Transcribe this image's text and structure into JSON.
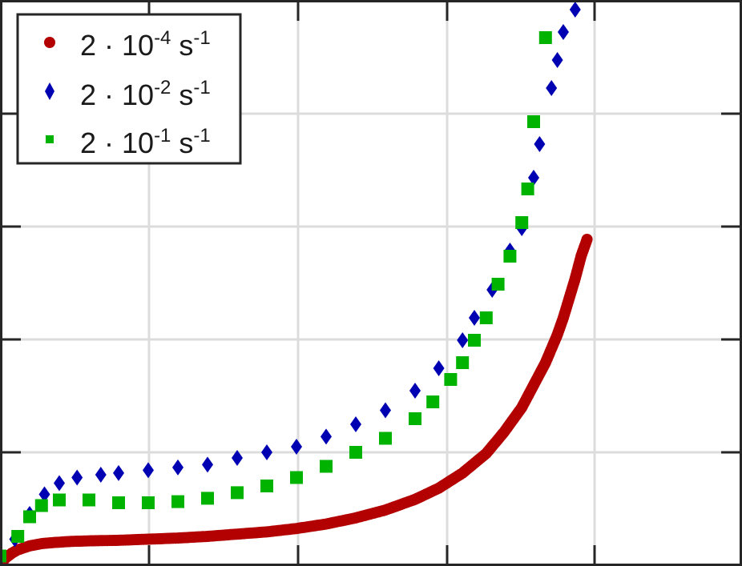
{
  "chart_data": {
    "type": "scatter",
    "title": "",
    "xlabel": "",
    "ylabel": "",
    "grid": true,
    "legend_position": "top-left",
    "xlim": [
      0,
      1
    ],
    "ylim": [
      0,
      1
    ],
    "series": [
      {
        "name": "2 · 10-4 s-1",
        "legend": {
          "base": "2 · 10",
          "exp": "-4",
          "unit": " s",
          "unit_exp": "-1"
        },
        "marker": "circle",
        "color": "#b30000",
        "style": "dense",
        "x": [
          0.0,
          0.01,
          0.02,
          0.03,
          0.05,
          0.07,
          0.09,
          0.12,
          0.15,
          0.2,
          0.25,
          0.3,
          0.35,
          0.4,
          0.45,
          0.5,
          0.55,
          0.6,
          0.65,
          0.7,
          0.74,
          0.78,
          0.82,
          0.85,
          0.88,
          0.9,
          0.92,
          0.94,
          0.95,
          0.96,
          0.97,
          0.98,
          0.99
        ],
        "y": [
          0.0,
          0.012,
          0.02,
          0.026,
          0.033,
          0.037,
          0.039,
          0.041,
          0.042,
          0.043,
          0.045,
          0.047,
          0.05,
          0.054,
          0.058,
          0.064,
          0.072,
          0.083,
          0.097,
          0.116,
          0.136,
          0.163,
          0.198,
          0.236,
          0.28,
          0.32,
          0.36,
          0.41,
          0.44,
          0.475,
          0.51,
          0.55,
          0.58
        ]
      },
      {
        "name": "2 · 10-2 s-1",
        "legend": {
          "base": "2 · 10",
          "exp": "-2",
          "unit": " s",
          "unit_exp": "-1"
        },
        "marker": "diamond",
        "color": "#0000b3",
        "x": [
          0.0,
          0.025,
          0.05,
          0.075,
          0.1,
          0.13,
          0.17,
          0.2,
          0.25,
          0.3,
          0.35,
          0.4,
          0.45,
          0.5,
          0.55,
          0.6,
          0.65,
          0.7,
          0.74,
          0.78,
          0.8,
          0.83,
          0.86,
          0.88,
          0.9,
          0.91,
          0.93,
          0.94,
          0.95,
          0.97
        ],
        "y": [
          0.01,
          0.045,
          0.09,
          0.125,
          0.145,
          0.155,
          0.16,
          0.163,
          0.168,
          0.173,
          0.178,
          0.19,
          0.2,
          0.21,
          0.228,
          0.25,
          0.275,
          0.31,
          0.35,
          0.4,
          0.44,
          0.49,
          0.56,
          0.6,
          0.69,
          0.75,
          0.85,
          0.9,
          0.95,
          0.99
        ]
      },
      {
        "name": "2 · 10-1 s-1",
        "legend": {
          "base": "2 · 10",
          "exp": "-1",
          "unit": " s",
          "unit_exp": "-1"
        },
        "marker": "square",
        "color": "#00b300",
        "x": [
          0.0,
          0.03,
          0.05,
          0.07,
          0.1,
          0.15,
          0.2,
          0.25,
          0.3,
          0.35,
          0.4,
          0.45,
          0.5,
          0.55,
          0.6,
          0.65,
          0.7,
          0.73,
          0.76,
          0.78,
          0.8,
          0.82,
          0.84,
          0.86,
          0.88,
          0.89,
          0.9,
          0.92
        ],
        "y": [
          0.015,
          0.05,
          0.085,
          0.105,
          0.115,
          0.115,
          0.11,
          0.11,
          0.112,
          0.118,
          0.128,
          0.14,
          0.155,
          0.175,
          0.2,
          0.225,
          0.26,
          0.29,
          0.33,
          0.36,
          0.4,
          0.44,
          0.5,
          0.55,
          0.61,
          0.67,
          0.79,
          0.94
        ]
      }
    ]
  }
}
